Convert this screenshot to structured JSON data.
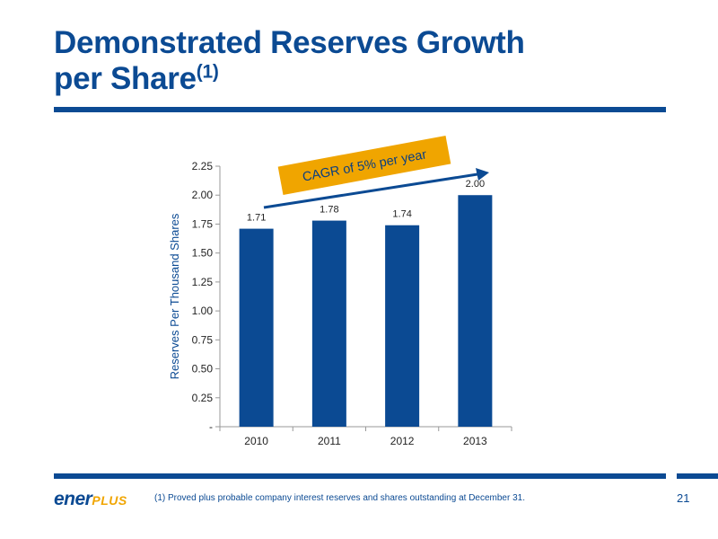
{
  "slide": {
    "title_line1": "Demonstrated Reserves Growth",
    "title_line2": "per Share",
    "title_sup": "(1)",
    "footnote": "(1) Proved plus probable company interest reserves and shares outstanding at December 31.",
    "page_number": "21",
    "logo_part1": "ener",
    "logo_part2": "PLUS"
  },
  "colors": {
    "brand_blue": "#0b4a93",
    "bar": "#0b4a93",
    "callout_fill": "#f0a500"
  },
  "chart_data": {
    "type": "bar",
    "categories": [
      "2010",
      "2011",
      "2012",
      "2013"
    ],
    "values": [
      1.71,
      1.78,
      1.74,
      2.0
    ],
    "value_labels": [
      "1.71",
      "1.78",
      "1.74",
      "2.00"
    ],
    "title": "",
    "xlabel": "",
    "ylabel": "Reserves Per Thousand Shares",
    "ylim": [
      0,
      2.25
    ],
    "yticks": [
      0,
      0.25,
      0.5,
      0.75,
      1.0,
      1.25,
      1.5,
      1.75,
      2.0,
      2.25
    ],
    "ytick_labels": [
      "-",
      "0.25",
      "0.50",
      "0.75",
      "1.00",
      "1.25",
      "1.50",
      "1.75",
      "2.00",
      "2.25"
    ],
    "grid": false,
    "legend": "none",
    "annotation": "CAGR of 5% per year"
  }
}
